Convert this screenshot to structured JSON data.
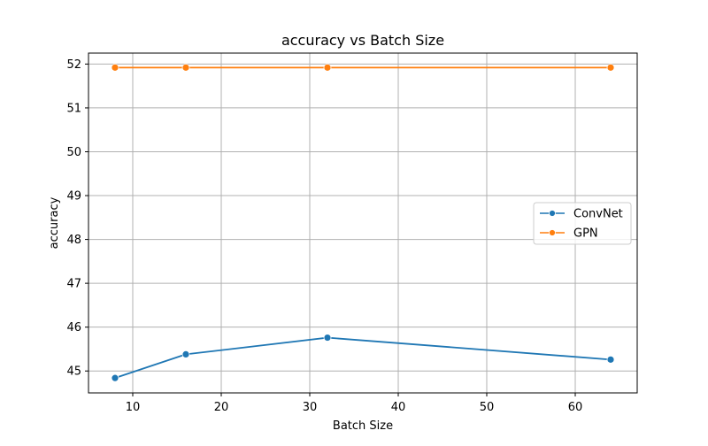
{
  "chart_data": {
    "type": "line",
    "title": "accuracy vs Batch Size",
    "xlabel": "Batch Size",
    "ylabel": "accuracy",
    "x": [
      8,
      16,
      32,
      64
    ],
    "xlim": [
      5,
      67
    ],
    "ylim": [
      44.5,
      52.25
    ],
    "xticks": [
      10,
      20,
      30,
      40,
      50,
      60
    ],
    "yticks": [
      45,
      46,
      47,
      48,
      49,
      50,
      51,
      52
    ],
    "grid": true,
    "legend_position": "center-right",
    "series": [
      {
        "name": "ConvNet",
        "color": "#1f77b4",
        "marker": "circle",
        "values": [
          44.84,
          45.38,
          45.76,
          45.26
        ]
      },
      {
        "name": "GPN",
        "color": "#ff7f0e",
        "marker": "circle",
        "values": [
          51.92,
          51.92,
          51.92,
          51.92
        ]
      }
    ]
  }
}
